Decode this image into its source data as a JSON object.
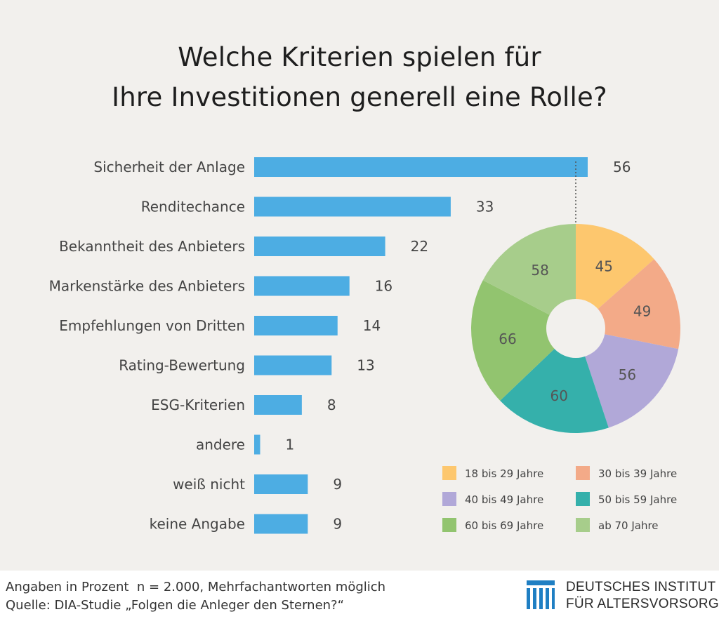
{
  "title": {
    "line1": "Welche Kriterien spielen für",
    "line2": "Ihre Investitionen generell eine Rolle?"
  },
  "footer": {
    "note": "Angaben in Prozent  n = 2.000, Mehrfachantworten möglich",
    "source": "Quelle: DIA-Studie „Folgen die Anleger den Sternen?“",
    "logo_line1": "DEUTSCHES INSTITUT",
    "logo_line2": "FÜR ALTERSVORSORGE"
  },
  "colors": {
    "bar": "#4dade3",
    "background": "#f2f0ed",
    "logo": "#1f7fc3"
  },
  "chart_data": [
    {
      "type": "bar",
      "orientation": "horizontal",
      "categories": [
        "Sicherheit der Anlage",
        "Renditechance",
        "Bekanntheit des Anbieters",
        "Markenstärke des Anbieters",
        "Empfehlungen von Dritten",
        "Rating-Bewertung",
        "ESG-Kriterien",
        "andere",
        "weiß nicht",
        "keine Angabe"
      ],
      "values": [
        56,
        33,
        22,
        16,
        14,
        13,
        8,
        1,
        9,
        9
      ],
      "xlim": [
        0,
        56
      ]
    },
    {
      "type": "pie",
      "donut": true,
      "breakdown_of": "Sicherheit der Anlage",
      "labels": [
        "18 bis 29 Jahre",
        "30 bis 39 Jahre",
        "40 bis 49 Jahre",
        "50 bis 59 Jahre",
        "60 bis 69 Jahre",
        "ab 70 Jahre"
      ],
      "values": [
        45,
        49,
        56,
        60,
        66,
        58
      ],
      "colors": [
        "#fdc76e",
        "#f3aa88",
        "#b1a8d8",
        "#35b0ab",
        "#92c46f",
        "#a7cd8b"
      ]
    }
  ]
}
